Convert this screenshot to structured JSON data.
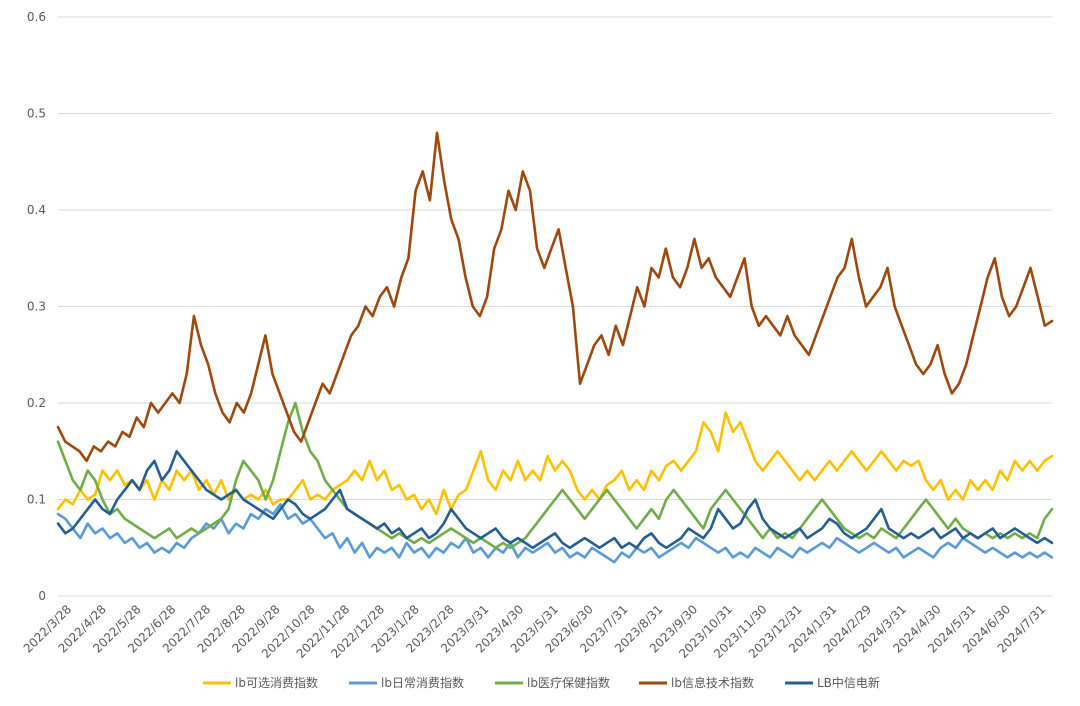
{
  "chart_data": {
    "type": "line",
    "title": "",
    "xlabel": "",
    "ylabel": "",
    "ylim": [
      0,
      0.6
    ],
    "yticks": [
      "0",
      "0.1",
      "0.2",
      "0.3",
      "0.4",
      "0.5",
      "0.6"
    ],
    "yticks_values": [
      0,
      0.1,
      0.2,
      0.3,
      0.4,
      0.5,
      0.6
    ],
    "x_start": "2022/3/28",
    "x_end": "2024/7/31",
    "xticks": [
      "2022/3/28",
      "2022/4/28",
      "2022/5/28",
      "2022/6/28",
      "2022/7/28",
      "2022/8/28",
      "2022/9/28",
      "2022/10/28",
      "2022/11/28",
      "2022/12/28",
      "2023/1/28",
      "2023/2/28",
      "2023/3/31",
      "2023/4/30",
      "2023/5/31",
      "2023/6/30",
      "2023/7/31",
      "2023/8/31",
      "2023/9/30",
      "2023/10/31",
      "2023/11/30",
      "2023/12/31",
      "2024/1/31",
      "2024/2/29",
      "2024/3/31",
      "2024/4/30",
      "2024/5/31",
      "2024/6/30",
      "2024/7/31"
    ],
    "grid": "horizontal",
    "legend_position": "bottom",
    "series": [
      {
        "name": "lb可选消费指数",
        "color": "#FFC000",
        "values": [
          0.09,
          0.1,
          0.095,
          0.11,
          0.1,
          0.105,
          0.13,
          0.12,
          0.13,
          0.115,
          0.12,
          0.11,
          0.12,
          0.1,
          0.12,
          0.11,
          0.13,
          0.12,
          0.13,
          0.11,
          0.12,
          0.105,
          0.12,
          0.1,
          0.11,
          0.1,
          0.105,
          0.1,
          0.11,
          0.095,
          0.1,
          0.1,
          0.11,
          0.12,
          0.1,
          0.105,
          0.1,
          0.11,
          0.115,
          0.12,
          0.13,
          0.12,
          0.14,
          0.12,
          0.13,
          0.11,
          0.115,
          0.1,
          0.105,
          0.09,
          0.1,
          0.085,
          0.11,
          0.09,
          0.105,
          0.11,
          0.13,
          0.15,
          0.12,
          0.11,
          0.13,
          0.12,
          0.14,
          0.12,
          0.13,
          0.12,
          0.145,
          0.13,
          0.14,
          0.13,
          0.11,
          0.1,
          0.11,
          0.1,
          0.115,
          0.12,
          0.13,
          0.11,
          0.12,
          0.11,
          0.13,
          0.12,
          0.135,
          0.14,
          0.13,
          0.14,
          0.15,
          0.18,
          0.17,
          0.15,
          0.19,
          0.17,
          0.18,
          0.16,
          0.14,
          0.13,
          0.14,
          0.15,
          0.14,
          0.13,
          0.12,
          0.13,
          0.12,
          0.13,
          0.14,
          0.13,
          0.14,
          0.15,
          0.14,
          0.13,
          0.14,
          0.15,
          0.14,
          0.13,
          0.14,
          0.135,
          0.14,
          0.12,
          0.11,
          0.12,
          0.1,
          0.11,
          0.1,
          0.12,
          0.11,
          0.12,
          0.11,
          0.13,
          0.12,
          0.14,
          0.13,
          0.14,
          0.13,
          0.14,
          0.145
        ]
      },
      {
        "name": "lb日常消费指数",
        "color": "#5B9BD5",
        "values": [
          0.085,
          0.08,
          0.07,
          0.06,
          0.075,
          0.065,
          0.07,
          0.06,
          0.065,
          0.055,
          0.06,
          0.05,
          0.055,
          0.045,
          0.05,
          0.045,
          0.055,
          0.05,
          0.06,
          0.065,
          0.075,
          0.07,
          0.08,
          0.065,
          0.075,
          0.07,
          0.085,
          0.08,
          0.09,
          0.085,
          0.095,
          0.08,
          0.085,
          0.075,
          0.08,
          0.07,
          0.06,
          0.065,
          0.05,
          0.06,
          0.045,
          0.055,
          0.04,
          0.05,
          0.045,
          0.05,
          0.04,
          0.055,
          0.045,
          0.05,
          0.04,
          0.05,
          0.045,
          0.055,
          0.05,
          0.06,
          0.045,
          0.05,
          0.04,
          0.05,
          0.045,
          0.055,
          0.04,
          0.05,
          0.045,
          0.05,
          0.055,
          0.045,
          0.05,
          0.04,
          0.045,
          0.04,
          0.05,
          0.045,
          0.04,
          0.035,
          0.045,
          0.04,
          0.05,
          0.045,
          0.05,
          0.04,
          0.045,
          0.05,
          0.055,
          0.05,
          0.06,
          0.055,
          0.05,
          0.045,
          0.05,
          0.04,
          0.045,
          0.04,
          0.05,
          0.045,
          0.04,
          0.05,
          0.045,
          0.04,
          0.05,
          0.045,
          0.05,
          0.055,
          0.05,
          0.06,
          0.055,
          0.05,
          0.045,
          0.05,
          0.055,
          0.05,
          0.045,
          0.05,
          0.04,
          0.045,
          0.05,
          0.045,
          0.04,
          0.05,
          0.055,
          0.05,
          0.06,
          0.055,
          0.05,
          0.045,
          0.05,
          0.045,
          0.04,
          0.045,
          0.04,
          0.045,
          0.04,
          0.045,
          0.04
        ]
      },
      {
        "name": "lb医疗保健指数",
        "color": "#70AD47",
        "values": [
          0.16,
          0.14,
          0.12,
          0.11,
          0.13,
          0.12,
          0.1,
          0.085,
          0.09,
          0.08,
          0.075,
          0.07,
          0.065,
          0.06,
          0.065,
          0.07,
          0.06,
          0.065,
          0.07,
          0.065,
          0.07,
          0.075,
          0.08,
          0.09,
          0.12,
          0.14,
          0.13,
          0.12,
          0.1,
          0.12,
          0.15,
          0.18,
          0.2,
          0.17,
          0.15,
          0.14,
          0.12,
          0.11,
          0.1,
          0.09,
          0.085,
          0.08,
          0.075,
          0.07,
          0.065,
          0.06,
          0.065,
          0.06,
          0.055,
          0.06,
          0.055,
          0.06,
          0.065,
          0.07,
          0.065,
          0.06,
          0.055,
          0.06,
          0.055,
          0.05,
          0.055,
          0.05,
          0.055,
          0.06,
          0.07,
          0.08,
          0.09,
          0.1,
          0.11,
          0.1,
          0.09,
          0.08,
          0.09,
          0.1,
          0.11,
          0.1,
          0.09,
          0.08,
          0.07,
          0.08,
          0.09,
          0.08,
          0.1,
          0.11,
          0.1,
          0.09,
          0.08,
          0.07,
          0.09,
          0.1,
          0.11,
          0.1,
          0.09,
          0.08,
          0.07,
          0.06,
          0.07,
          0.06,
          0.065,
          0.06,
          0.07,
          0.08,
          0.09,
          0.1,
          0.09,
          0.08,
          0.07,
          0.065,
          0.06,
          0.065,
          0.06,
          0.07,
          0.065,
          0.06,
          0.07,
          0.08,
          0.09,
          0.1,
          0.09,
          0.08,
          0.07,
          0.08,
          0.07,
          0.065,
          0.06,
          0.065,
          0.06,
          0.065,
          0.06,
          0.065,
          0.06,
          0.065,
          0.06,
          0.08,
          0.09
        ]
      },
      {
        "name": "lb信息技术指数",
        "color": "#9E480E",
        "values": [
          0.175,
          0.16,
          0.155,
          0.15,
          0.14,
          0.155,
          0.15,
          0.16,
          0.155,
          0.17,
          0.165,
          0.185,
          0.175,
          0.2,
          0.19,
          0.2,
          0.21,
          0.2,
          0.23,
          0.29,
          0.26,
          0.24,
          0.21,
          0.19,
          0.18,
          0.2,
          0.19,
          0.21,
          0.24,
          0.27,
          0.23,
          0.21,
          0.19,
          0.17,
          0.16,
          0.18,
          0.2,
          0.22,
          0.21,
          0.23,
          0.25,
          0.27,
          0.28,
          0.3,
          0.29,
          0.31,
          0.32,
          0.3,
          0.33,
          0.35,
          0.42,
          0.44,
          0.41,
          0.48,
          0.43,
          0.39,
          0.37,
          0.33,
          0.3,
          0.29,
          0.31,
          0.36,
          0.38,
          0.42,
          0.4,
          0.44,
          0.42,
          0.36,
          0.34,
          0.36,
          0.38,
          0.34,
          0.3,
          0.22,
          0.24,
          0.26,
          0.27,
          0.25,
          0.28,
          0.26,
          0.29,
          0.32,
          0.3,
          0.34,
          0.33,
          0.36,
          0.33,
          0.32,
          0.34,
          0.37,
          0.34,
          0.35,
          0.33,
          0.32,
          0.31,
          0.33,
          0.35,
          0.3,
          0.28,
          0.29,
          0.28,
          0.27,
          0.29,
          0.27,
          0.26,
          0.25,
          0.27,
          0.29,
          0.31,
          0.33,
          0.34,
          0.37,
          0.33,
          0.3,
          0.31,
          0.32,
          0.34,
          0.3,
          0.28,
          0.26,
          0.24,
          0.23,
          0.24,
          0.26,
          0.23,
          0.21,
          0.22,
          0.24,
          0.27,
          0.3,
          0.33,
          0.35,
          0.31,
          0.29,
          0.3,
          0.32,
          0.34,
          0.31,
          0.28,
          0.285
        ]
      },
      {
        "name": "LB中信电新",
        "color": "#255E91",
        "values": [
          0.075,
          0.065,
          0.07,
          0.08,
          0.09,
          0.1,
          0.09,
          0.085,
          0.1,
          0.11,
          0.12,
          0.11,
          0.13,
          0.14,
          0.12,
          0.13,
          0.15,
          0.14,
          0.13,
          0.12,
          0.11,
          0.105,
          0.1,
          0.105,
          0.11,
          0.1,
          0.095,
          0.09,
          0.085,
          0.08,
          0.09,
          0.1,
          0.095,
          0.085,
          0.08,
          0.085,
          0.09,
          0.1,
          0.11,
          0.09,
          0.085,
          0.08,
          0.075,
          0.07,
          0.075,
          0.065,
          0.07,
          0.06,
          0.065,
          0.07,
          0.06,
          0.065,
          0.075,
          0.09,
          0.08,
          0.07,
          0.065,
          0.06,
          0.065,
          0.07,
          0.06,
          0.055,
          0.06,
          0.055,
          0.05,
          0.055,
          0.06,
          0.065,
          0.055,
          0.05,
          0.055,
          0.06,
          0.055,
          0.05,
          0.055,
          0.06,
          0.05,
          0.055,
          0.05,
          0.06,
          0.065,
          0.055,
          0.05,
          0.055,
          0.06,
          0.07,
          0.065,
          0.06,
          0.07,
          0.09,
          0.08,
          0.07,
          0.075,
          0.09,
          0.1,
          0.08,
          0.07,
          0.065,
          0.06,
          0.065,
          0.07,
          0.06,
          0.065,
          0.07,
          0.08,
          0.075,
          0.065,
          0.06,
          0.065,
          0.07,
          0.08,
          0.09,
          0.07,
          0.065,
          0.06,
          0.065,
          0.06,
          0.065,
          0.07,
          0.06,
          0.065,
          0.07,
          0.06,
          0.065,
          0.06,
          0.065,
          0.07,
          0.06,
          0.065,
          0.07,
          0.065,
          0.06,
          0.055,
          0.06,
          0.055
        ]
      }
    ]
  }
}
